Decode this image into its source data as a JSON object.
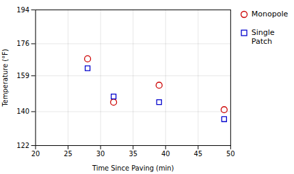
{
  "chart_data": {
    "type": "scatter",
    "xlabel": "Time Since Paving (min)",
    "ylabel": "Temperature (°F)",
    "x": [
      28,
      32,
      39,
      49
    ],
    "series": [
      {
        "name": "Monopole",
        "color": "#cc0000",
        "marker": "circle",
        "values": [
          168,
          145,
          154,
          141
        ]
      },
      {
        "name": "Single\nPatch",
        "color": "#0000cc",
        "marker": "square",
        "values": [
          163,
          148,
          145,
          136
        ]
      }
    ],
    "xlim": [
      20,
      50
    ],
    "ylim": [
      122,
      194
    ],
    "xticks": [
      20,
      25,
      30,
      35,
      40,
      45,
      50
    ],
    "yticks": [
      122,
      140,
      159,
      176,
      194
    ],
    "grid": true,
    "legend": "right"
  }
}
